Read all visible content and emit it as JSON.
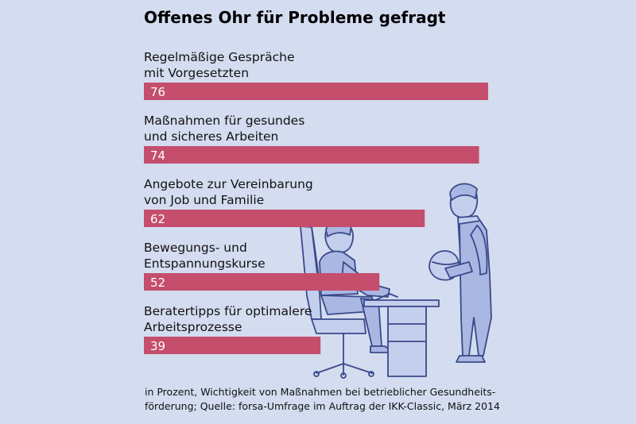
{
  "chart_data": {
    "type": "bar",
    "title": "Offenes Ohr für Probleme gefragt",
    "categories": [
      [
        "Regelmäßige Gespräche",
        "mit Vorgesetzten"
      ],
      [
        "Maßnahmen für gesundes",
        "und sicheres Arbeiten"
      ],
      [
        "Angebote zur Vereinbarung",
        "von Job und Familie"
      ],
      [
        "Bewegungs- und",
        "Entspannungskurse"
      ],
      [
        "Beratertipps für optimalere",
        "Arbeitsprozesse"
      ]
    ],
    "values": [
      76,
      74,
      62,
      52,
      39
    ],
    "xlim": [
      0,
      76
    ],
    "bar_color": "#c44e6c",
    "background_color": "#d4dcf0",
    "orientation": "horizontal",
    "footnote": [
      "in Prozent, Wichtigkeit von Maßnahmen bei betrieblicher Gesundheits-",
      "förderung; Quelle: forsa-Umfrage im Auftrag der IKK-Classic, März 2014"
    ]
  },
  "illustration": {
    "icon": "office-workers-icon",
    "colors": {
      "outline": "#3a4a8a",
      "fill": "#a9b7e2"
    }
  }
}
